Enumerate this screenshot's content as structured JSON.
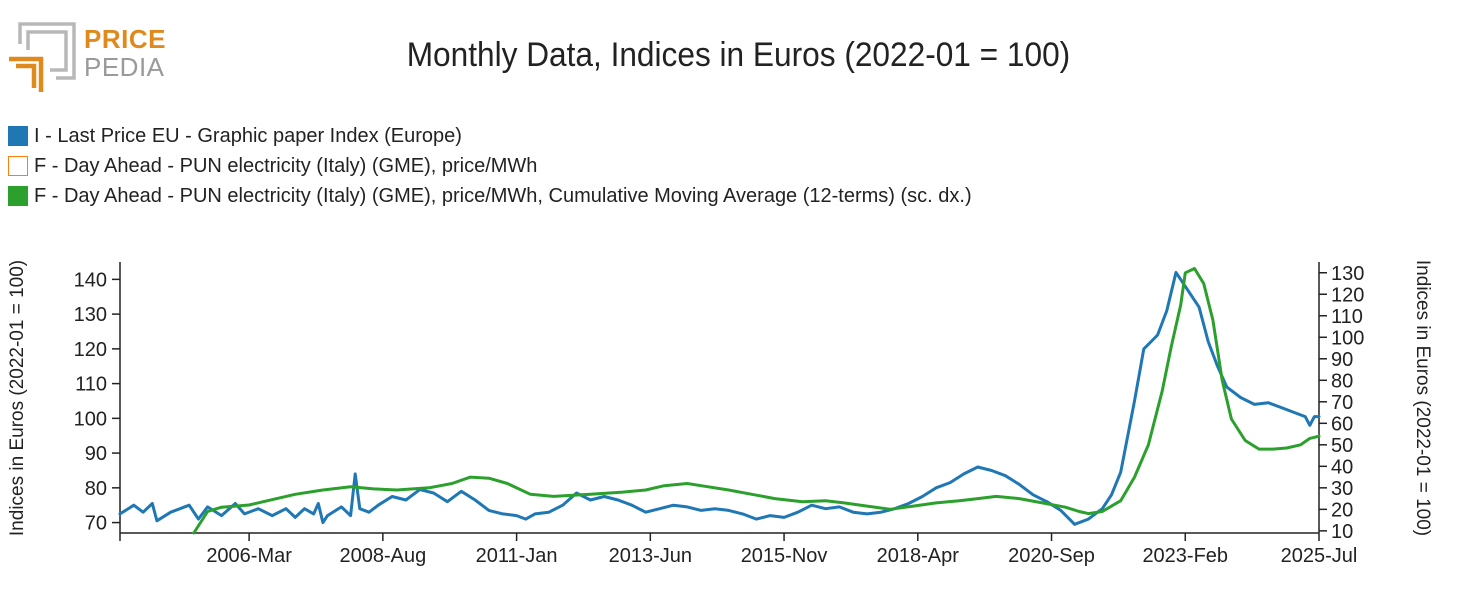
{
  "logo": {
    "line1": "PRICE",
    "line2": "PEDIA"
  },
  "chart_data": {
    "type": "line",
    "title": "Monthly Data, Indices in Euros (2022-01 = 100)",
    "ylabel_left": "Indices in Euros (2022-01 = 100)",
    "ylabel_right": "Indices in Euros (2022-01 = 100)",
    "x_range": [
      "2003-11",
      "2025-07"
    ],
    "x_ticks": [
      "2006-Mar",
      "2008-Aug",
      "2011-Jan",
      "2013-Jun",
      "2015-Nov",
      "2018-Apr",
      "2020-Sep",
      "2023-Feb",
      "2025-Jul"
    ],
    "y_left": {
      "ticks": [
        70,
        80,
        90,
        100,
        110,
        120,
        130,
        140
      ],
      "range": [
        67,
        145
      ]
    },
    "y_right": {
      "ticks": [
        10,
        20,
        30,
        40,
        50,
        60,
        70,
        80,
        90,
        100,
        110,
        120,
        130
      ],
      "range": [
        9,
        135
      ]
    },
    "grid": false,
    "legend_position": "top-left",
    "series": [
      {
        "name": "I - Last Price EU - Graphic paper Index (Europe)",
        "color": "#1f77b4",
        "axis": "left",
        "visible": true,
        "points": [
          [
            "2003-11",
            72.5
          ],
          [
            "2004-02",
            75
          ],
          [
            "2004-04",
            73
          ],
          [
            "2004-06",
            75.5
          ],
          [
            "2004-07",
            70.5
          ],
          [
            "2004-10",
            73
          ],
          [
            "2005-02",
            75
          ],
          [
            "2005-04",
            71
          ],
          [
            "2005-06",
            74.5
          ],
          [
            "2005-09",
            72
          ],
          [
            "2005-12",
            75.5
          ],
          [
            "2006-02",
            72.5
          ],
          [
            "2006-05",
            74
          ],
          [
            "2006-08",
            72
          ],
          [
            "2006-11",
            74
          ],
          [
            "2007-01",
            71.5
          ],
          [
            "2007-03",
            74
          ],
          [
            "2007-05",
            72.5
          ],
          [
            "2007-06",
            75.5
          ],
          [
            "2007-07",
            70
          ],
          [
            "2007-08",
            72
          ],
          [
            "2007-11",
            74.5
          ],
          [
            "2008-01",
            72
          ],
          [
            "2008-02",
            84
          ],
          [
            "2008-03",
            74
          ],
          [
            "2008-05",
            73
          ],
          [
            "2008-07",
            75
          ],
          [
            "2008-10",
            77.5
          ],
          [
            "2009-01",
            76.5
          ],
          [
            "2009-04",
            79.5
          ],
          [
            "2009-07",
            78.5
          ],
          [
            "2009-10",
            76
          ],
          [
            "2010-01",
            79
          ],
          [
            "2010-04",
            76.5
          ],
          [
            "2010-07",
            73.5
          ],
          [
            "2010-10",
            72.5
          ],
          [
            "2011-01",
            72
          ],
          [
            "2011-03",
            71
          ],
          [
            "2011-05",
            72.5
          ],
          [
            "2011-08",
            73
          ],
          [
            "2011-11",
            75
          ],
          [
            "2012-02",
            78.5
          ],
          [
            "2012-05",
            76.5
          ],
          [
            "2012-08",
            77.5
          ],
          [
            "2012-11",
            76.5
          ],
          [
            "2013-02",
            75
          ],
          [
            "2013-05",
            73
          ],
          [
            "2013-08",
            74
          ],
          [
            "2013-11",
            75
          ],
          [
            "2014-02",
            74.5
          ],
          [
            "2014-05",
            73.5
          ],
          [
            "2014-08",
            74
          ],
          [
            "2014-11",
            73.5
          ],
          [
            "2015-02",
            72.5
          ],
          [
            "2015-05",
            71
          ],
          [
            "2015-08",
            72
          ],
          [
            "2015-11",
            71.5
          ],
          [
            "2016-02",
            73
          ],
          [
            "2016-05",
            75
          ],
          [
            "2016-08",
            74
          ],
          [
            "2016-11",
            74.5
          ],
          [
            "2017-02",
            73
          ],
          [
            "2017-05",
            72.5
          ],
          [
            "2017-08",
            73
          ],
          [
            "2017-11",
            74
          ],
          [
            "2018-02",
            75.5
          ],
          [
            "2018-05",
            77.5
          ],
          [
            "2018-08",
            80
          ],
          [
            "2018-11",
            81.5
          ],
          [
            "2019-02",
            84
          ],
          [
            "2019-05",
            86
          ],
          [
            "2019-08",
            85
          ],
          [
            "2019-11",
            83.5
          ],
          [
            "2020-02",
            81
          ],
          [
            "2020-05",
            78
          ],
          [
            "2020-08",
            76
          ],
          [
            "2020-11",
            73.5
          ],
          [
            "2021-02",
            69.5
          ],
          [
            "2021-05",
            71
          ],
          [
            "2021-08",
            74
          ],
          [
            "2021-10",
            78
          ],
          [
            "2021-12",
            84.5
          ],
          [
            "2022-03",
            105
          ],
          [
            "2022-05",
            120
          ],
          [
            "2022-08",
            124
          ],
          [
            "2022-10",
            131
          ],
          [
            "2022-12",
            142
          ],
          [
            "2023-03",
            136
          ],
          [
            "2023-05",
            132
          ],
          [
            "2023-07",
            122
          ],
          [
            "2023-09",
            115
          ],
          [
            "2023-11",
            109
          ],
          [
            "2024-02",
            106
          ],
          [
            "2024-05",
            104
          ],
          [
            "2024-08",
            104.5
          ],
          [
            "2024-11",
            103
          ],
          [
            "2025-02",
            101.5
          ],
          [
            "2025-04",
            100.5
          ],
          [
            "2025-05",
            98
          ],
          [
            "2025-06",
            100.5
          ],
          [
            "2025-07",
            100.5
          ]
        ]
      },
      {
        "name": "F - Day Ahead - PUN electricity (Italy) (GME), price/MWh",
        "color": "#ff7f0e",
        "axis": "right",
        "visible": false,
        "points": []
      },
      {
        "name": "F - Day Ahead - PUN electricity (Italy) (GME), price/MWh, Cumulative Moving Average (12-terms) (sc. dx.)",
        "color": "#2ca02c",
        "axis": "right",
        "visible": true,
        "points": [
          [
            "2005-03",
            9
          ],
          [
            "2005-06",
            19
          ],
          [
            "2005-09",
            21
          ],
          [
            "2006-03",
            22
          ],
          [
            "2006-07",
            24
          ],
          [
            "2007-01",
            27
          ],
          [
            "2007-07",
            29
          ],
          [
            "2008-01",
            30.5
          ],
          [
            "2008-06",
            29.5
          ],
          [
            "2008-11",
            29
          ],
          [
            "2009-06",
            30
          ],
          [
            "2009-11",
            32
          ],
          [
            "2010-03",
            35
          ],
          [
            "2010-07",
            34.5
          ],
          [
            "2010-11",
            32
          ],
          [
            "2011-04",
            27
          ],
          [
            "2011-09",
            26
          ],
          [
            "2012-05",
            27
          ],
          [
            "2012-12",
            28
          ],
          [
            "2013-05",
            29
          ],
          [
            "2013-09",
            31
          ],
          [
            "2014-02",
            32
          ],
          [
            "2014-05",
            31
          ],
          [
            "2014-11",
            29
          ],
          [
            "2015-04",
            27
          ],
          [
            "2015-09",
            25
          ],
          [
            "2016-03",
            23.5
          ],
          [
            "2016-08",
            24
          ],
          [
            "2016-12",
            23
          ],
          [
            "2017-05",
            21.5
          ],
          [
            "2017-10",
            20
          ],
          [
            "2018-03",
            21.5
          ],
          [
            "2018-08",
            23
          ],
          [
            "2019-01",
            24
          ],
          [
            "2019-05",
            25
          ],
          [
            "2019-09",
            26
          ],
          [
            "2020-02",
            25
          ],
          [
            "2020-07",
            23
          ],
          [
            "2020-12",
            21
          ],
          [
            "2021-03",
            19
          ],
          [
            "2021-05",
            18
          ],
          [
            "2021-08",
            19
          ],
          [
            "2021-12",
            24
          ],
          [
            "2022-03",
            35
          ],
          [
            "2022-06",
            50
          ],
          [
            "2022-09",
            75
          ],
          [
            "2022-11",
            96
          ],
          [
            "2023-01",
            115
          ],
          [
            "2023-02",
            130
          ],
          [
            "2023-04",
            132
          ],
          [
            "2023-06",
            125
          ],
          [
            "2023-08",
            108
          ],
          [
            "2023-10",
            80
          ],
          [
            "2023-12",
            62
          ],
          [
            "2024-03",
            52
          ],
          [
            "2024-06",
            48
          ],
          [
            "2024-09",
            48
          ],
          [
            "2024-12",
            48.5
          ],
          [
            "2025-03",
            50
          ],
          [
            "2025-05",
            53
          ],
          [
            "2025-07",
            54
          ]
        ]
      }
    ]
  }
}
